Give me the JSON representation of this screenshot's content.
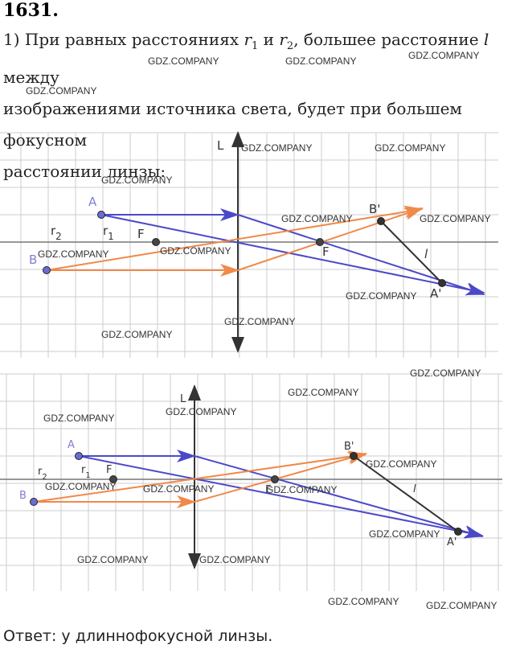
{
  "problem": {
    "number": "1631.",
    "text": [
      "1) При равных расстояниях ",
      "r",
      "1",
      " и ",
      "r",
      "2",
      ", большее расстояние ",
      "l",
      " между",
      "изображениями источника света, будет при большем фокусном",
      "расстоянии линзы:"
    ]
  },
  "diagrams": [
    {
      "labels": [
        {
          "text": "L"
        },
        {
          "text": "A"
        },
        {
          "text": "B"
        },
        {
          "text": "r",
          "sub": "2"
        },
        {
          "text": "r",
          "sub": "1"
        },
        {
          "text": "F"
        },
        {
          "text": "F"
        },
        {
          "text": "B'"
        },
        {
          "text": "A'"
        },
        {
          "text": "l"
        }
      ]
    },
    {
      "labels": [
        {
          "text": "L"
        },
        {
          "text": "A"
        },
        {
          "text": "B"
        },
        {
          "text": "r",
          "sub": "2"
        },
        {
          "text": "r",
          "sub": "1"
        },
        {
          "text": "F"
        },
        {
          "text": "F"
        },
        {
          "text": "B'"
        },
        {
          "text": "A'"
        },
        {
          "text": "l"
        }
      ]
    }
  ],
  "watermarks": [
    "GDZ.COMPANY",
    "GDZ.COMPANY",
    "GDZ.COMPANY",
    "GDZ.COMPANY",
    "GDZ.COMPANY",
    "GDZ.COMPANY",
    "GDZ.COMPANY",
    "GDZ.COMPANY",
    "GDZ.COMPANY",
    "GDZ.COMPANY",
    "GDZ.COMPANY",
    "GDZ.COMPANY",
    "GDZ.COMPANY",
    "GDZ.COMPANY",
    "GDZ.COMPANY",
    "GDZ.COMPANY",
    "GDZ.COMPANY",
    "GDZ.COMPANY",
    "GDZ.COMPANY",
    "GDZ.COMPANY",
    "GDZ.COMPANY",
    "GDZ.COMPANY",
    "GDZ.COMPANY",
    "GDZ.COMPANY",
    "GDZ.COMPANY",
    "GDZ.COMPANY",
    "GDZ.COMPANY"
  ],
  "answer": "Ответ:  у длиннофокусной линзы."
}
